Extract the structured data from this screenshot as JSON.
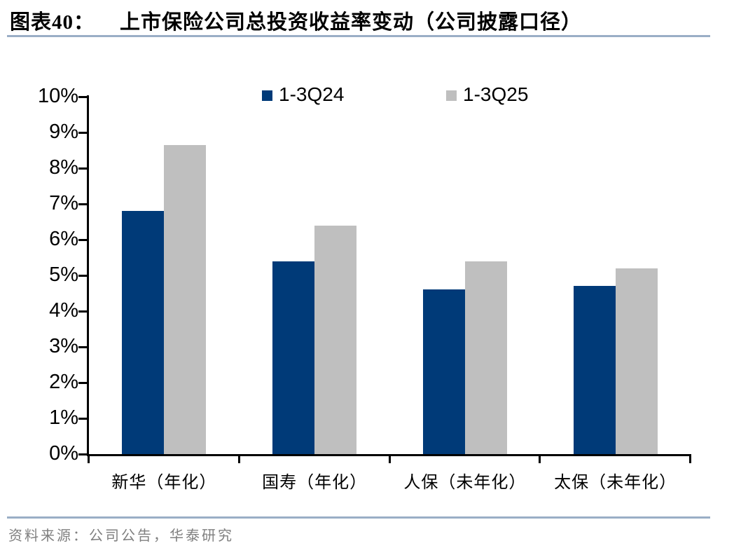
{
  "header": {
    "figure_label": "图表40：",
    "title": "上市保险公司总投资收益率变动（公司披露口径）"
  },
  "chart_data": {
    "type": "bar",
    "title": "上市保险公司总投资收益率变动（公司披露口径）",
    "categories": [
      "新华（年化）",
      "国寿（年化）",
      "人保（未年化）",
      "太保（未年化）"
    ],
    "series": [
      {
        "name": "1-3Q24",
        "color": "#003A78",
        "values": [
          6.8,
          5.4,
          4.6,
          4.7
        ]
      },
      {
        "name": "1-3Q25",
        "color": "#BFBFBF",
        "values": [
          8.65,
          6.4,
          5.4,
          5.2
        ]
      }
    ],
    "unit": "%",
    "ylim": [
      0,
      10
    ],
    "ytick_step": 1,
    "ytick_labels": [
      "0%",
      "1%",
      "2%",
      "3%",
      "4%",
      "5%",
      "6%",
      "7%",
      "8%",
      "9%",
      "10%"
    ],
    "legend_position": "top",
    "grid": false
  },
  "footer": {
    "source": "资料来源：公司公告，华泰研究"
  },
  "colors": {
    "divider": "#9AAEC6",
    "axis": "#000000",
    "bar_blue": "#003A78",
    "bar_gray": "#BFBFBF",
    "footer_text": "#7F7F7F"
  }
}
